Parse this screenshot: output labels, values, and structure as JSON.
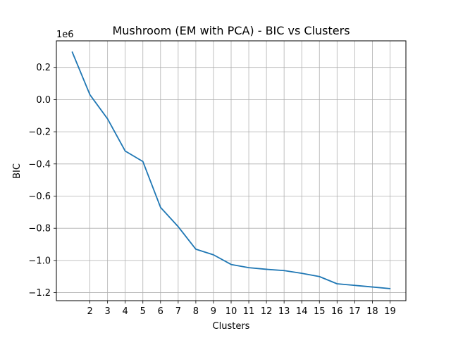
{
  "chart_data": {
    "type": "line",
    "title": "Mushroom (EM with PCA) - BIC vs Clusters",
    "xlabel": "Clusters",
    "ylabel": "BIC",
    "y_offset_label": "1e6",
    "x": [
      1,
      2,
      3,
      4,
      5,
      6,
      7,
      8,
      9,
      10,
      11,
      12,
      13,
      14,
      15,
      16,
      17,
      18,
      19
    ],
    "x_ticks": [
      2,
      3,
      4,
      5,
      6,
      7,
      8,
      9,
      10,
      11,
      12,
      13,
      14,
      15,
      16,
      17,
      18,
      19
    ],
    "y_ticks": [
      0.2,
      0.0,
      -0.2,
      -0.4,
      -0.6,
      -0.8,
      -1.0,
      -1.2
    ],
    "y_tick_labels": [
      "0.2",
      "0.0",
      "−0.2",
      "−0.4",
      "−0.6",
      "−0.8",
      "−1.0",
      "−1.2"
    ],
    "series": [
      {
        "values": [
          0.295,
          0.03,
          -0.12,
          -0.32,
          -0.385,
          -0.67,
          -0.79,
          -0.93,
          -0.965,
          -1.025,
          -1.045,
          -1.055,
          -1.063,
          -1.08,
          -1.1,
          -1.145,
          -1.155,
          -1.165,
          -1.175
        ],
        "color": "#1f77b4"
      }
    ],
    "xlim": [
      0.1,
      19.9
    ],
    "ylim": [
      -1.25,
      0.365
    ],
    "grid": true,
    "legend": "none"
  }
}
